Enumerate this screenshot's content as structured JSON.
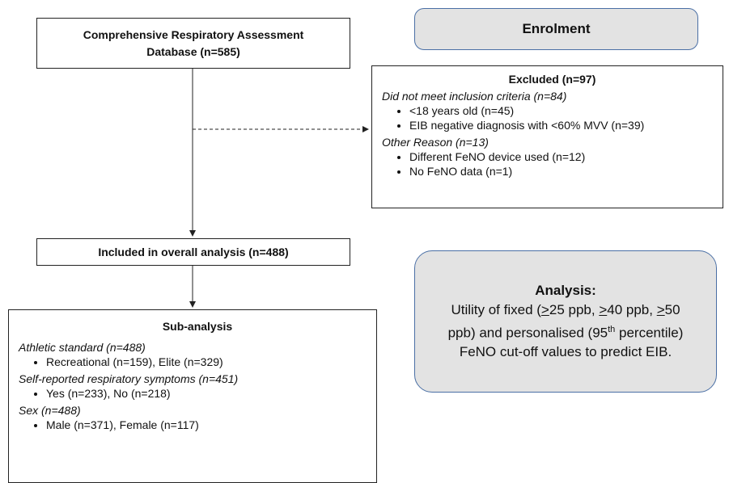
{
  "database": {
    "title": "Comprehensive Respiratory Assessment Database (n=585)"
  },
  "enrolment": {
    "label": "Enrolment"
  },
  "excluded": {
    "title": "Excluded (n=97)",
    "groups": [
      {
        "heading": "Did not meet inclusion criteria (n=84)",
        "items": [
          "<18 years old (n=45)",
          "EIB negative diagnosis with <60% MVV (n=39)"
        ]
      },
      {
        "heading": "Other Reason (n=13)",
        "items": [
          "Different FeNO device used (n=12)",
          "No FeNO data (n=1)"
        ]
      }
    ]
  },
  "included": {
    "label": "Included in overall analysis (n=488)"
  },
  "sub_analysis": {
    "title": "Sub-analysis",
    "groups": [
      {
        "heading": "Athletic standard (n=488)",
        "items": [
          "Recreational (n=159), Elite (n=329)"
        ]
      },
      {
        "heading": "Self-reported respiratory symptoms (n=451)",
        "items": [
          "Yes (n=233), No (n=218)"
        ]
      },
      {
        "heading": "Sex (n=488)",
        "items": [
          "Male (n=371), Female (n=117)"
        ]
      }
    ]
  },
  "analysis": {
    "title": "Analysis:",
    "body": [
      {
        "text": "Utility of fixed ("
      },
      {
        "text": ">",
        "style": "underline"
      },
      {
        "text": "25 ppb, "
      },
      {
        "text": ">",
        "style": "underline"
      },
      {
        "text": "40 ppb, "
      },
      {
        "text": ">",
        "style": "underline"
      },
      {
        "text": "50 ppb) and personalised (95"
      },
      {
        "text": "th",
        "style": "superscript"
      },
      {
        "text": " percentile) FeNO cut-off values to predict EIB."
      }
    ]
  }
}
